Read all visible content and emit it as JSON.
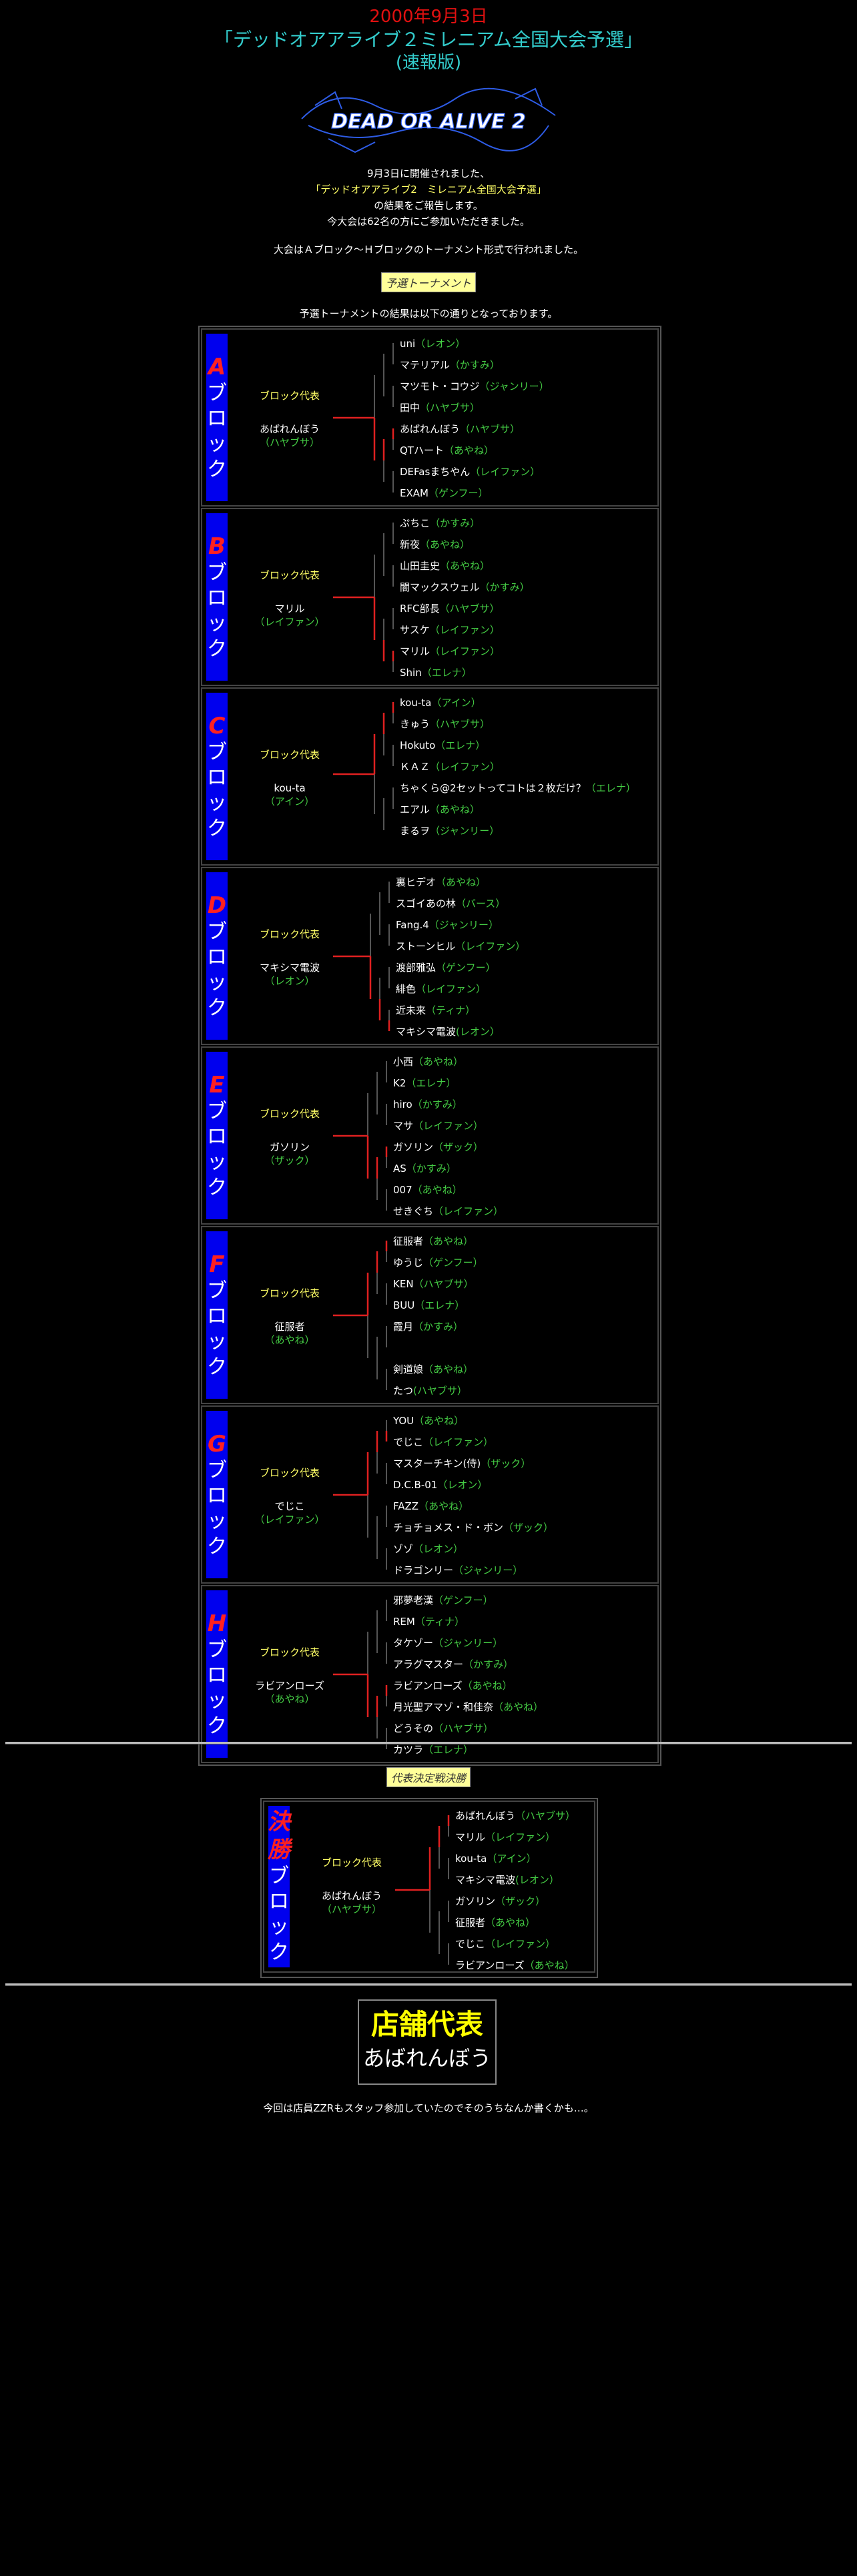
{
  "header": {
    "date": "2000年9月3日",
    "title": "「デッドオアアライブ２ミレニアム全国大会予選」",
    "subtitle": "(速報版)"
  },
  "logo_text": "DEAD OR ALIVE 2",
  "intro": {
    "l1": "9月3日に開催されました、",
    "l2": "「デッドオアアライブ2　ミレニアム全国大会予選」",
    "l3": "の結果をご報告します。",
    "l4": "今大会は62名の方にご参加いただきました。",
    "l5": "大会はＡブロック～Ｈブロックのトーナメント形式で行われました。"
  },
  "prelim_tag": "予選トーナメント",
  "prelim_desc": "予選トーナメントの結果は以下の通りとなっております。",
  "rep_heading": "ブロック代表",
  "blocks": [
    {
      "letter": "A",
      "rep": "あばれんぼう",
      "rep_char": "（ハヤブサ）",
      "entries": [
        [
          "uni",
          "（レオン）"
        ],
        [
          "マテリアル",
          "（かすみ）"
        ],
        [
          "マツモト・コウジ",
          "（ジャンリー）"
        ],
        [
          "田中",
          "（ハヤブサ）"
        ],
        [
          "あばれんぼう",
          "（ハヤブサ）"
        ],
        [
          "QTハート",
          "（あやね）"
        ],
        [
          "DEFasまちやん",
          "（レイファン）"
        ],
        [
          "EXAM",
          "（ゲンフー）"
        ]
      ]
    },
    {
      "letter": "B",
      "rep": "マリル",
      "rep_char": "（レイファン）",
      "entries": [
        [
          "ぷちこ",
          "（かすみ）"
        ],
        [
          "新夜",
          "（あやね）"
        ],
        [
          "山田圭史",
          "（あやね）"
        ],
        [
          "闇マックスウェル",
          "（かすみ）"
        ],
        [
          "RFC部長",
          "（ハヤブサ）"
        ],
        [
          "サスケ",
          "（レイファン）"
        ],
        [
          "マリル",
          "（レイファン）"
        ],
        [
          "Shin",
          "（エレナ）"
        ]
      ]
    },
    {
      "letter": "C",
      "rep": "kou-ta",
      "rep_char": "（アイン）",
      "entries": [
        [
          "kou-ta",
          "（アイン）"
        ],
        [
          "きゅう",
          "（ハヤブサ）"
        ],
        [
          "Hokuto",
          "（エレナ）"
        ],
        [
          "ＫＡＺ",
          "（レイファン）"
        ],
        [
          "ちゃくら@2セットってコトは２枚だけ？",
          "（エレナ）"
        ],
        [
          "エアル",
          "（あやね）"
        ],
        [
          "まるヲ",
          "（ジャンリー）"
        ]
      ]
    },
    {
      "letter": "D",
      "rep": "マキシマ電波",
      "rep_char": "（レオン）",
      "entries": [
        [
          "裏ヒデオ",
          "（あやね）"
        ],
        [
          "スゴイあの林",
          "（バース）"
        ],
        [
          "Fang.4",
          "（ジャンリー）"
        ],
        [
          "ストーンヒル",
          "（レイファン）"
        ],
        [
          "渡部雅弘",
          "（ゲンフー）"
        ],
        [
          "緋色",
          "（レイファン）"
        ],
        [
          "近未来",
          "（ティナ）"
        ],
        [
          "マキシマ電波",
          "(レオン）"
        ]
      ]
    },
    {
      "letter": "E",
      "rep": "ガソリン",
      "rep_char": "（ザック）",
      "entries": [
        [
          "小西",
          "（あやね）"
        ],
        [
          "K2",
          "（エレナ）"
        ],
        [
          "hiro",
          "（かすみ）"
        ],
        [
          "マサ",
          "（レイファン）"
        ],
        [
          "ガソリン",
          "（ザック）"
        ],
        [
          "AS",
          "（かすみ）"
        ],
        [
          "007",
          "（あやね）"
        ],
        [
          "せきぐち",
          "（レイファン）"
        ]
      ]
    },
    {
      "letter": "F",
      "rep": "征服者",
      "rep_char": "（あやね）",
      "entries": [
        [
          "征服者",
          "（あやね）"
        ],
        [
          "ゆうじ",
          "（ゲンフー）"
        ],
        [
          "KEN",
          "（ハヤブサ）"
        ],
        [
          "BUU",
          "（エレナ）"
        ],
        [
          "霞月",
          "（かすみ）"
        ],
        [
          "",
          ""
        ],
        [
          "剣道娘",
          "（あやね）"
        ],
        [
          "たつ",
          "(ハヤブサ）"
        ]
      ]
    },
    {
      "letter": "G",
      "rep": "でじこ",
      "rep_char": "（レイファン）",
      "entries": [
        [
          "YOU",
          "（あやね）"
        ],
        [
          "でじこ",
          "（レイファン）"
        ],
        [
          "マスターチキン(侍)",
          "（ザック）"
        ],
        [
          "D.C.B-01",
          "（レオン）"
        ],
        [
          "FAZZ",
          "（あやね）"
        ],
        [
          "チョチョメス・ド・ボン",
          "（ザック）"
        ],
        [
          "ゾゾ",
          "（レオン）"
        ],
        [
          "ドラゴンリー",
          "（ジャンリー）"
        ]
      ]
    },
    {
      "letter": "H",
      "rep": "ラビアンローズ",
      "rep_char": "（あやね）",
      "entries": [
        [
          "邪夢老漢",
          "（ゲンフー）"
        ],
        [
          "REM",
          "（ティナ）"
        ],
        [
          "タケゾー",
          "（ジャンリー）"
        ],
        [
          "アラグマスター",
          "（かすみ）"
        ],
        [
          "ラビアンローズ",
          "（あやね）"
        ],
        [
          "月光聖アマゾ・和佳奈",
          "（あやね）"
        ],
        [
          "どうその",
          "（ハヤブサ）"
        ],
        [
          "カツラ",
          "（エレナ）"
        ]
      ]
    }
  ],
  "katakana": [
    "ブ",
    "ロ",
    "ッ",
    "ク"
  ],
  "final_tag": "代表決定戦決勝",
  "final": {
    "label": "決勝",
    "rep": "あばれんぼう",
    "rep_char": "（ハヤブサ）",
    "entries": [
      [
        "あばれんぼう",
        "（ハヤブサ）"
      ],
      [
        "マリル",
        "（レイファン）"
      ],
      [
        "kou-ta",
        "（アイン）"
      ],
      [
        "マキシマ電波",
        "(レオン）"
      ],
      [
        "ガソリン",
        "（ザック）"
      ],
      [
        "征服者",
        "（あやね）"
      ],
      [
        "でじこ",
        "（レイファン）"
      ],
      [
        "ラビアンローズ",
        "（あやね）"
      ]
    ]
  },
  "store": {
    "label": "店舗代表",
    "name": "あばれんぼう"
  },
  "note": "今回は店員ZZRもスタッフ参加していたのでそのうちなんか書くかも…。",
  "colors": {
    "red": "#e01010",
    "cyan": "#33cccc",
    "blue": "#0000ee",
    "line_red": "#e02020",
    "line_gray": "#555555",
    "yellow": "#ffff66",
    "green": "#44cc44"
  }
}
